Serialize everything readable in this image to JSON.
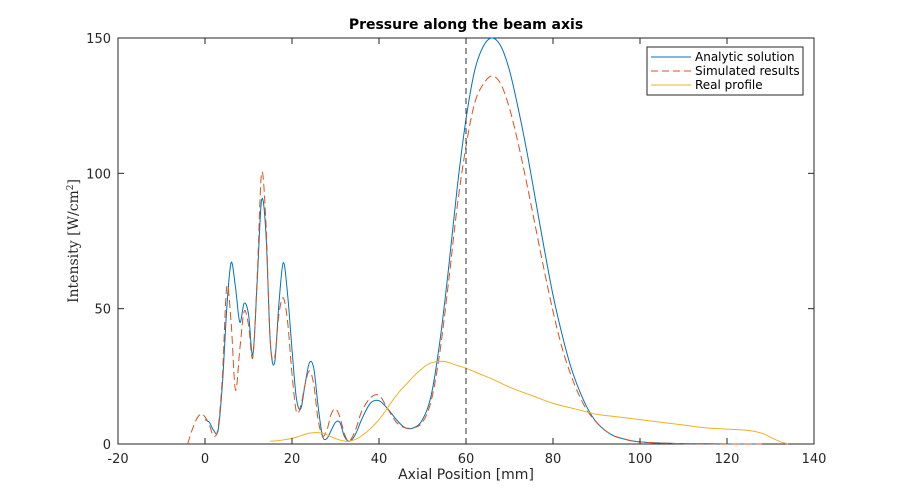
{
  "chart_data": {
    "type": "line",
    "title": "Pressure along the beam axis",
    "xlabel": "Axial Position [mm]",
    "ylabel": {
      "prefix": "Intensity  [W/cm",
      "sup": "2",
      "suffix": "]"
    },
    "xlim": [
      -20,
      140
    ],
    "ylim": [
      0,
      150
    ],
    "xticks": [
      -20,
      0,
      20,
      40,
      60,
      80,
      100,
      120,
      140
    ],
    "yticks": [
      0,
      50,
      100,
      150
    ],
    "grid": false,
    "legend_position": "top-right",
    "vline": {
      "x": 60,
      "style": "dashed",
      "color": "#333333"
    },
    "series": [
      {
        "name": "Analytic solution",
        "color": "#0072bd",
        "dash": "solid",
        "x": [
          0,
          1,
          2,
          3,
          4,
          5,
          6,
          7,
          8,
          9,
          10,
          11,
          12,
          13,
          14,
          15,
          16,
          17,
          18,
          19,
          20,
          21,
          22,
          23,
          24,
          25,
          26,
          27,
          28,
          29,
          30,
          31,
          32,
          33,
          34,
          35,
          36,
          38,
          40,
          42,
          44,
          46,
          48,
          50,
          52,
          54,
          56,
          58,
          60,
          62,
          64,
          66,
          68,
          70,
          72,
          74,
          76,
          78,
          80,
          82,
          84,
          86,
          88,
          90,
          92,
          94,
          96,
          98,
          100,
          104,
          108,
          112,
          116,
          120,
          124,
          128
        ],
        "y": [
          9,
          8,
          5,
          5,
          22,
          50,
          67,
          58,
          45,
          52,
          48,
          33,
          60,
          90,
          78,
          38,
          30,
          52,
          67,
          55,
          35,
          17,
          13,
          22,
          30,
          28,
          14,
          3,
          2,
          5,
          8,
          8,
          3,
          1,
          2,
          5,
          9,
          15,
          16,
          13,
          9,
          6,
          6,
          9,
          18,
          38,
          65,
          95,
          120,
          138,
          147,
          150,
          147,
          138,
          124,
          108,
          90,
          72,
          55,
          41,
          29,
          20,
          13,
          8,
          5,
          3,
          2,
          1.2,
          0.8,
          0.4,
          0.2,
          0.1,
          0.1,
          0,
          0,
          0
        ]
      },
      {
        "name": "Simulated results",
        "color": "#d95319",
        "dash": "dashed",
        "x": [
          -4,
          -3,
          -2,
          -1,
          0,
          1,
          2,
          3,
          4,
          5,
          6,
          7,
          8,
          9,
          10,
          11,
          12,
          13,
          14,
          15,
          16,
          17,
          18,
          19,
          20,
          21,
          22,
          23,
          24,
          25,
          26,
          27,
          28,
          29,
          30,
          31,
          32,
          33,
          34,
          35,
          36,
          38,
          40,
          42,
          44,
          46,
          48,
          50,
          52,
          54,
          56,
          58,
          60,
          62,
          64,
          66,
          68,
          70,
          72,
          74,
          76,
          78,
          80,
          82,
          84,
          86,
          88,
          90,
          92,
          94,
          96,
          98,
          100,
          104,
          108,
          112,
          116,
          120,
          124,
          128
        ],
        "y": [
          0,
          5,
          9,
          11,
          10,
          7,
          3,
          6,
          25,
          58,
          45,
          20,
          35,
          49,
          44,
          32,
          62,
          100,
          82,
          38,
          32,
          48,
          54,
          45,
          26,
          12,
          14,
          22,
          27,
          22,
          9,
          3,
          5,
          11,
          13,
          10,
          4,
          1,
          3,
          7,
          12,
          17,
          18,
          13,
          8,
          6,
          6,
          8,
          16,
          34,
          60,
          88,
          110,
          126,
          133,
          136,
          133,
          124,
          111,
          96,
          80,
          64,
          49,
          36,
          26,
          18,
          12,
          8,
          5,
          3,
          2,
          1.2,
          0.8,
          0.4,
          0.2,
          0.1,
          0.1,
          0,
          0,
          0
        ]
      },
      {
        "name": "Real profile",
        "color": "#edb120",
        "dash": "solid",
        "x": [
          15,
          18,
          21,
          24,
          27,
          30,
          33,
          36,
          40,
          44,
          48,
          50,
          52,
          55,
          58,
          60,
          63,
          66,
          70,
          75,
          80,
          85,
          90,
          95,
          100,
          105,
          110,
          115,
          120,
          125,
          128,
          130,
          132,
          134
        ],
        "y": [
          1,
          1.5,
          2.5,
          4,
          4,
          2,
          1,
          3,
          9,
          18,
          25,
          28,
          30,
          30.5,
          29,
          28,
          26,
          24,
          21,
          18,
          15,
          13,
          11,
          10,
          9,
          8,
          7,
          6,
          5.5,
          5,
          4,
          2.5,
          1,
          0
        ]
      }
    ]
  }
}
